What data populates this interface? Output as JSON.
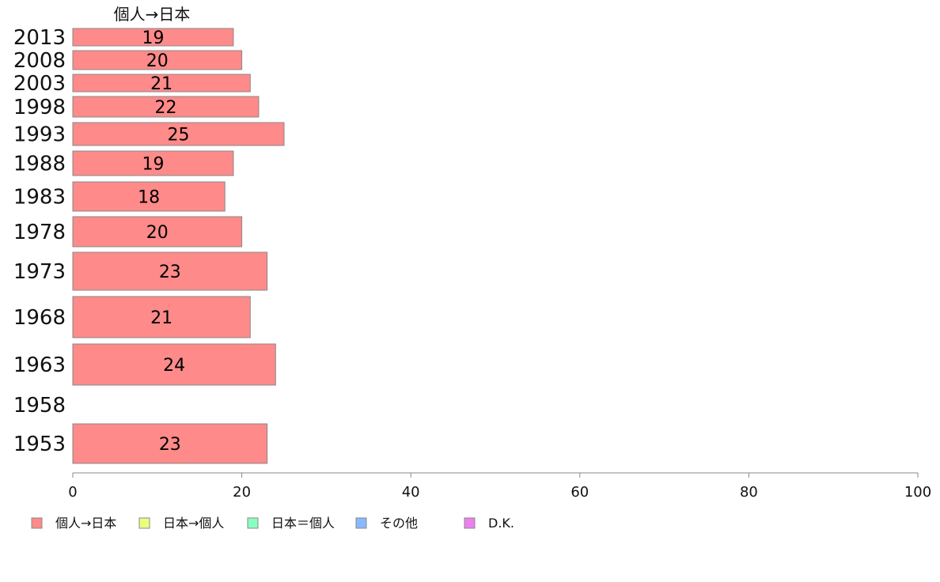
{
  "chart_data": {
    "type": "bar",
    "orientation": "horizontal",
    "series_header": "個人→日本",
    "categories": [
      "2013",
      "2008",
      "2003",
      "1998",
      "1993",
      "1988",
      "1983",
      "1978",
      "1973",
      "1968",
      "1963",
      "1958",
      "1953"
    ],
    "series": [
      {
        "name": "個人→日本",
        "color": "#ff8a8a",
        "values": [
          19,
          20,
          21,
          22,
          25,
          19,
          18,
          20,
          23,
          21,
          24,
          null,
          23
        ]
      }
    ],
    "xlim": [
      0,
      100
    ],
    "xticks": [
      "0",
      "20",
      "40",
      "60",
      "80",
      "100"
    ],
    "xlabel": "",
    "ylabel": "",
    "title": "",
    "grid": false,
    "legend": {
      "placement": "bottom-left",
      "entries": [
        {
          "label": "個人→日本",
          "color": "#ff8a8a"
        },
        {
          "label": "日本→個人",
          "color": "#eaff80"
        },
        {
          "label": "日本＝個人",
          "color": "#8affc0"
        },
        {
          "label": "その他",
          "color": "#8ab8ff"
        },
        {
          "label": "D.K.",
          "color": "#ee80ee"
        }
      ]
    }
  }
}
